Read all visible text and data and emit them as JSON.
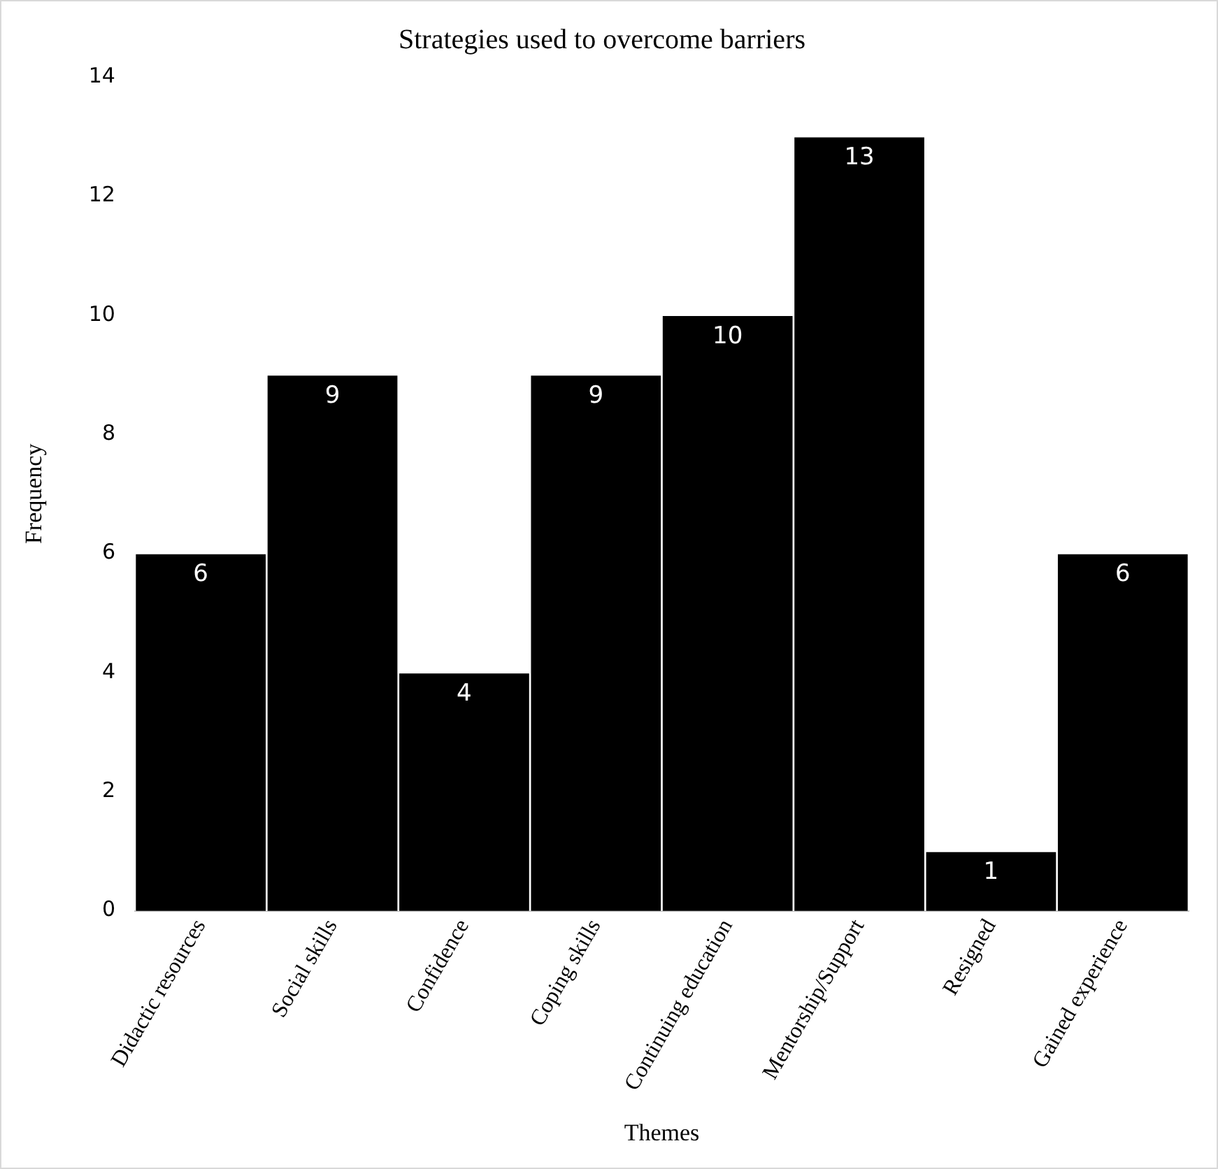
{
  "chart_data": {
    "type": "bar",
    "title": "Strategies used to overcome barriers",
    "xlabel": "Themes",
    "ylabel": "Frequency",
    "categories": [
      "Didactic resources",
      "Social skills",
      "Confidence",
      "Coping skills",
      "Continuing education",
      "Mentorship/Support",
      "Resigned",
      "Gained experience"
    ],
    "values": [
      6,
      9,
      4,
      9,
      10,
      13,
      1,
      6
    ],
    "color": "#000000",
    "ylim": [
      0,
      14
    ],
    "yticks": [
      0,
      2,
      4,
      6,
      8,
      10,
      12,
      14
    ],
    "grid": false,
    "data_labels": true
  }
}
